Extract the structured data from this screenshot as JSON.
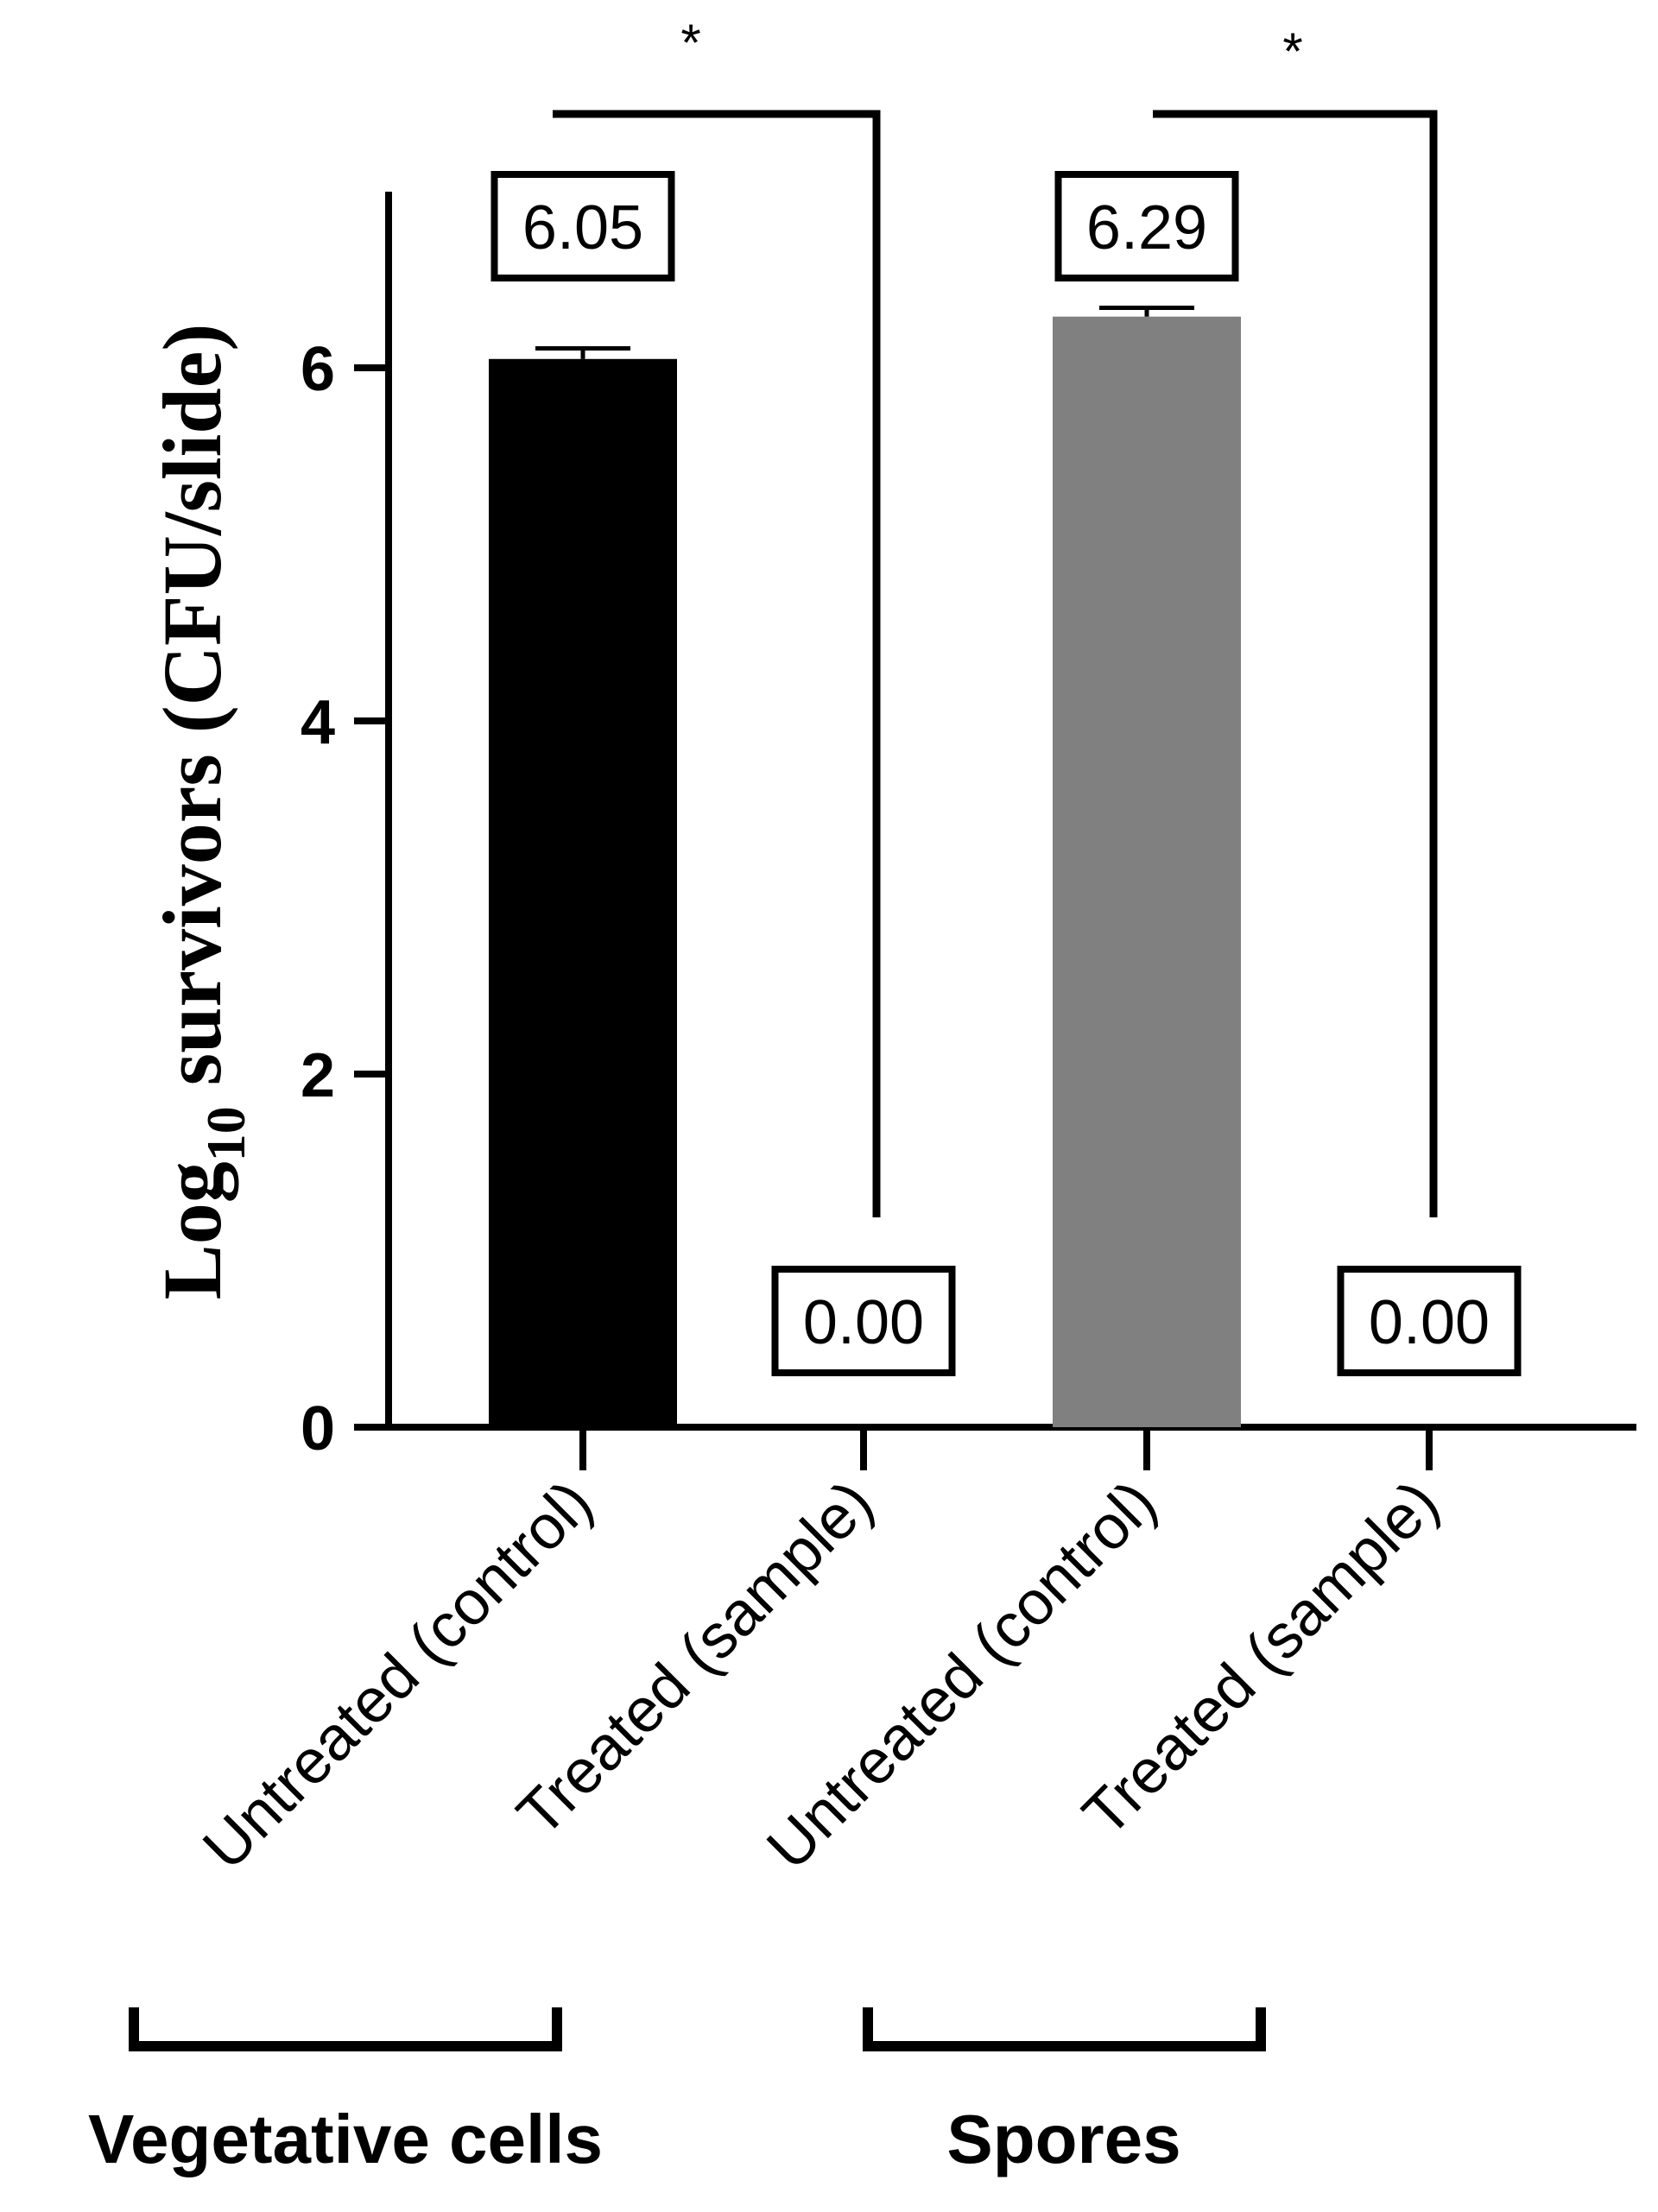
{
  "chart_data": {
    "type": "bar",
    "title": "",
    "xlabel": "",
    "ylabel": {
      "prefix": "Log",
      "subscript": "10",
      "suffix": " survivors (CFU/slide)"
    },
    "ylim": [
      0,
      7
    ],
    "yticks": [
      0,
      2,
      4,
      6
    ],
    "grid": false,
    "categories": [
      "Untreated (control)",
      "Treated (sample)",
      "Untreated (control)",
      "Treated (sample)"
    ],
    "values": [
      6.05,
      0.0,
      6.29,
      0.0
    ],
    "error": [
      0.06,
      0,
      0.05,
      0
    ],
    "data_labels": [
      "6.05",
      "0.00",
      "6.29",
      "0.00"
    ],
    "bar_colors": [
      "#000000",
      "#000000",
      "#808080",
      "#808080"
    ],
    "groups": [
      {
        "label": "Vegetative cells",
        "categories": [
          0,
          1
        ]
      },
      {
        "label": "Spores",
        "categories": [
          2,
          3
        ]
      }
    ],
    "significance": [
      {
        "from": 0,
        "to": 1,
        "label": "*"
      },
      {
        "from": 2,
        "to": 3,
        "label": "*"
      }
    ]
  }
}
